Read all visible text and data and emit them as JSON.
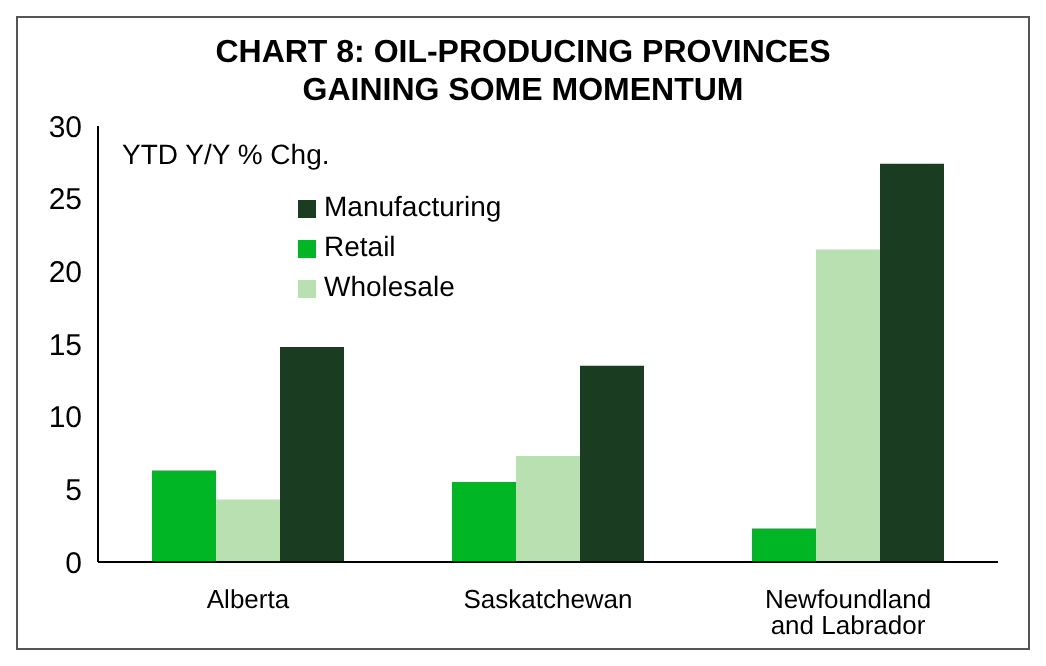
{
  "chart_data": {
    "type": "bar",
    "title": "CHART 8: OIL-PRODUCING PROVINCES GAINING SOME MOMENTUM",
    "ylabel": "YTD Y/Y % Chg.",
    "categories": [
      "Alberta",
      "Saskatchewan",
      "Newfoundland and Labrador"
    ],
    "series": [
      {
        "name": "Retail",
        "color": "#00b624",
        "values": [
          6.3,
          5.5,
          2.3
        ]
      },
      {
        "name": "Wholesale",
        "color": "#b8e0b0",
        "values": [
          4.3,
          7.3,
          21.5
        ]
      },
      {
        "name": "Manufacturing",
        "color": "#1a3d22",
        "values": [
          14.8,
          13.5,
          27.4
        ]
      }
    ],
    "ylim": [
      0,
      30
    ],
    "yticks": [
      0,
      5,
      10,
      15,
      20,
      25,
      30
    ],
    "grid": false,
    "legend": "top left"
  }
}
